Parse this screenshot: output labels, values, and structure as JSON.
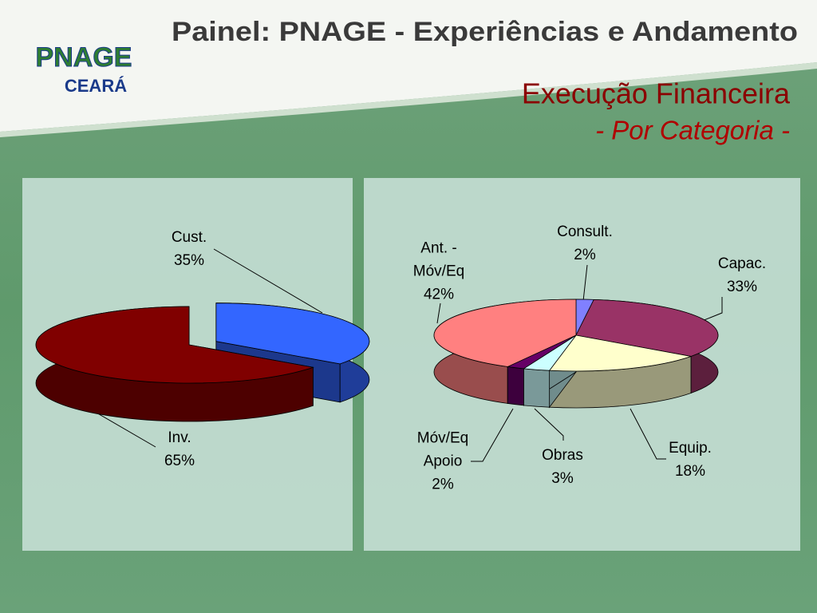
{
  "header": {
    "banner": "Painel: PNAGE - Experiências e Andamento",
    "logo": "PNAGE",
    "logo_sub": "CEARÁ",
    "title": "Execução Financeira",
    "subtitle": "- Por Categoria -"
  },
  "chart_data": [
    {
      "type": "pie",
      "categories": [
        "Cust.",
        "Inv."
      ],
      "values": [
        35,
        65
      ],
      "value_labels": [
        "35%",
        "65%"
      ],
      "colors": [
        "#3366ff",
        "#800000"
      ]
    },
    {
      "type": "pie",
      "categories": [
        "Consult.",
        "Capac.",
        "Equip.",
        "Obras",
        "Móv/Eq Apoio",
        "Ant. - Móv/Eq"
      ],
      "values": [
        2,
        33,
        18,
        3,
        2,
        42
      ],
      "value_labels": [
        "2%",
        "33%",
        "18%",
        "3%",
        "2%",
        "42%"
      ],
      "colors": [
        "#8080ff",
        "#993366",
        "#ffffcc",
        "#ccffff",
        "#660066",
        "#ff8080"
      ]
    }
  ]
}
